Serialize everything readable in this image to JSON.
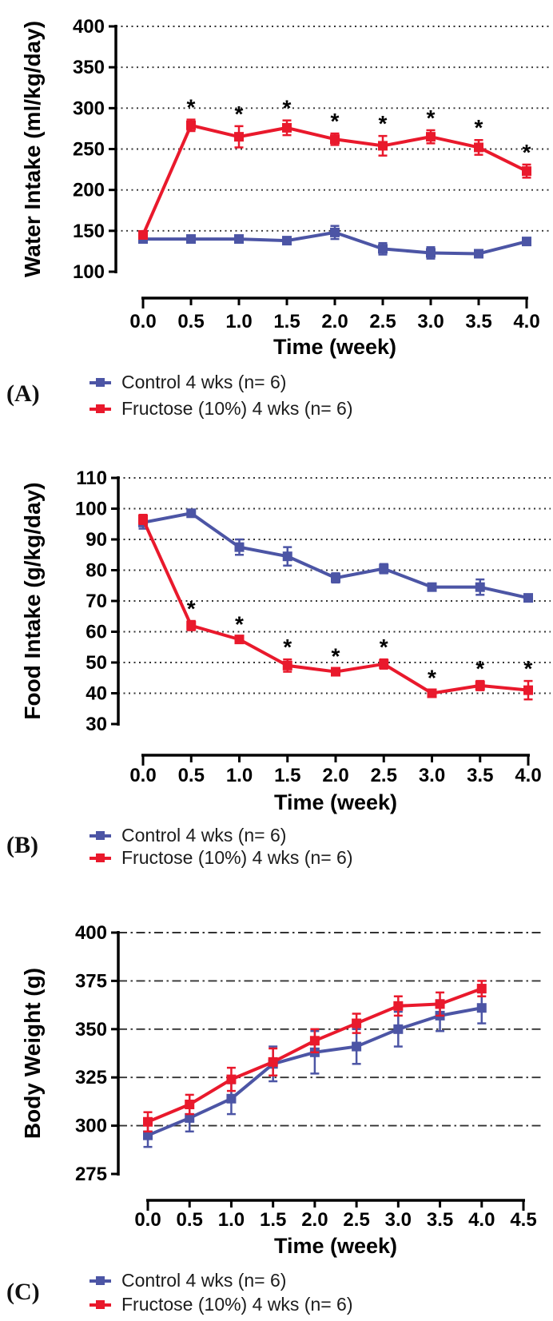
{
  "page": {
    "background_color": "#ffffff"
  },
  "colors": {
    "control": "#4C55A5",
    "fructose": "#E9192C",
    "axis": "#000000",
    "grid": "#333333",
    "star": "#000000"
  },
  "panels": [
    {
      "label": "(A)"
    },
    {
      "label": "(B)"
    },
    {
      "label": "(C)"
    }
  ],
  "chart_data": [
    {
      "id": "A",
      "type": "line",
      "title": "",
      "xlabel": "Time (week)",
      "ylabel": "Water Intake (ml/kg/day)",
      "xlim": [
        0,
        4
      ],
      "ylim": [
        100,
        400
      ],
      "xticks": [
        "0.0",
        "0.5",
        "1.0",
        "1.5",
        "2.0",
        "2.5",
        "3.0",
        "3.5",
        "4.0"
      ],
      "yticks": [
        100,
        150,
        200,
        250,
        300,
        350,
        400
      ],
      "grid": "dotted",
      "legend_position": "below",
      "x": [
        0,
        0.5,
        1,
        1.5,
        2,
        2.5,
        3,
        3.5,
        4
      ],
      "series": [
        {
          "name": "Control 4 wks (n= 6)",
          "color_key": "control",
          "values": [
            140,
            140,
            140,
            138,
            148,
            128,
            123,
            122,
            137
          ],
          "errors": [
            0,
            3,
            3,
            4,
            8,
            7,
            7,
            3,
            0
          ],
          "sig_x": []
        },
        {
          "name": "Fructose (10%) 4 wks (n= 6)",
          "color_key": "fructose",
          "values": [
            145,
            279,
            265,
            276,
            262,
            254,
            265,
            252,
            223
          ],
          "errors": [
            0,
            7,
            13,
            9,
            7,
            12,
            8,
            9,
            8
          ],
          "sig_x": [
            0.5,
            1,
            1.5,
            2,
            2.5,
            3,
            3.5,
            4
          ]
        }
      ]
    },
    {
      "id": "B",
      "type": "line",
      "title": "",
      "xlabel": "Time (week)",
      "ylabel": "Food  Intake (g/kg/day)",
      "xlim": [
        0,
        4
      ],
      "ylim": [
        30,
        110
      ],
      "xticks": [
        "0.0",
        "0.5",
        "1.0",
        "1.5",
        "2.0",
        "2.5",
        "3.0",
        "3.5",
        "4.0"
      ],
      "yticks": [
        30,
        40,
        50,
        60,
        70,
        80,
        90,
        100,
        110
      ],
      "grid": "dotted",
      "legend_position": "below",
      "x": [
        0,
        0.5,
        1,
        1.5,
        2,
        2.5,
        3,
        3.5,
        4
      ],
      "series": [
        {
          "name": "Control 4 wks (n= 6)",
          "color_key": "control",
          "values": [
            95.5,
            98.5,
            87.5,
            84.5,
            77.5,
            80.5,
            74.5,
            74.5,
            71
          ],
          "errors": [
            2,
            1,
            2.5,
            3,
            1.5,
            1.5,
            1,
            2.5,
            1
          ],
          "sig_x": []
        },
        {
          "name": "Fructose (10%) 4 wks (n= 6)",
          "color_key": "fructose",
          "values": [
            96.5,
            62,
            57.5,
            49,
            47,
            49.5,
            40,
            42.5,
            41
          ],
          "errors": [
            1.5,
            1.5,
            1,
            2,
            1,
            1.5,
            1,
            1.5,
            3
          ],
          "sig_x": [
            0.5,
            1,
            1.5,
            2,
            2.5,
            3,
            3.5,
            4
          ]
        }
      ]
    },
    {
      "id": "C",
      "type": "line",
      "title": "",
      "xlabel": "Time (week)",
      "ylabel": "Body Weight (g)",
      "xlim": [
        0,
        4.5
      ],
      "ylim": [
        275,
        400
      ],
      "xticks": [
        "0.0",
        "0.5",
        "1.0",
        "1.5",
        "2.0",
        "2.5",
        "3.0",
        "3.5",
        "4.0",
        "4.5"
      ],
      "yticks": [
        275,
        300,
        325,
        350,
        375,
        400
      ],
      "grid": "dashdot",
      "legend_position": "below",
      "x": [
        0,
        0.5,
        1,
        1.5,
        2,
        2.5,
        3,
        3.5,
        4
      ],
      "series": [
        {
          "name": "Control 4 wks (n= 6)",
          "color_key": "control",
          "values": [
            295,
            304,
            314,
            332,
            338,
            341,
            350,
            357,
            361
          ],
          "errors": [
            6,
            7,
            8,
            9,
            11,
            9,
            9,
            8,
            8
          ],
          "sig_x": []
        },
        {
          "name": "Fructose (10%) 4 wks (n= 6)",
          "color_key": "fructose",
          "values": [
            302,
            311,
            324,
            333,
            344,
            353,
            362,
            363,
            371
          ],
          "errors": [
            5,
            5,
            6,
            7,
            6,
            5,
            5,
            6,
            4
          ],
          "sig_x": []
        }
      ]
    }
  ]
}
